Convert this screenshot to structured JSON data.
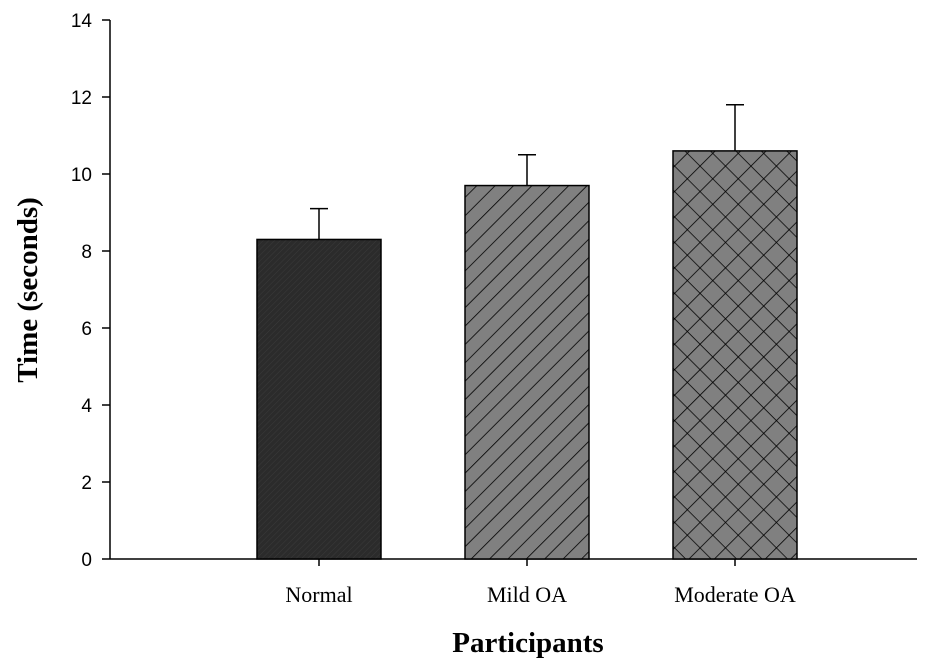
{
  "chart_data": {
    "type": "bar",
    "title": "",
    "xlabel": "Participants",
    "ylabel": "Time (seconds)",
    "ylim": [
      0,
      14
    ],
    "yticks": [
      "0",
      "2",
      "4",
      "6",
      "8",
      "10",
      "12",
      "14"
    ],
    "categories": [
      "Normal",
      "Mild OA",
      "Moderate OA"
    ],
    "values": [
      8.3,
      9.7,
      10.6
    ],
    "error": [
      0.8,
      0.8,
      1.2
    ],
    "patterns": [
      "dark-solid",
      "diagonal-hatch",
      "cross-hatch"
    ],
    "colors": {
      "dark": "#2b2b2b",
      "gray": "#808080",
      "axis": "#000000"
    },
    "grid": false,
    "legend": "none"
  }
}
